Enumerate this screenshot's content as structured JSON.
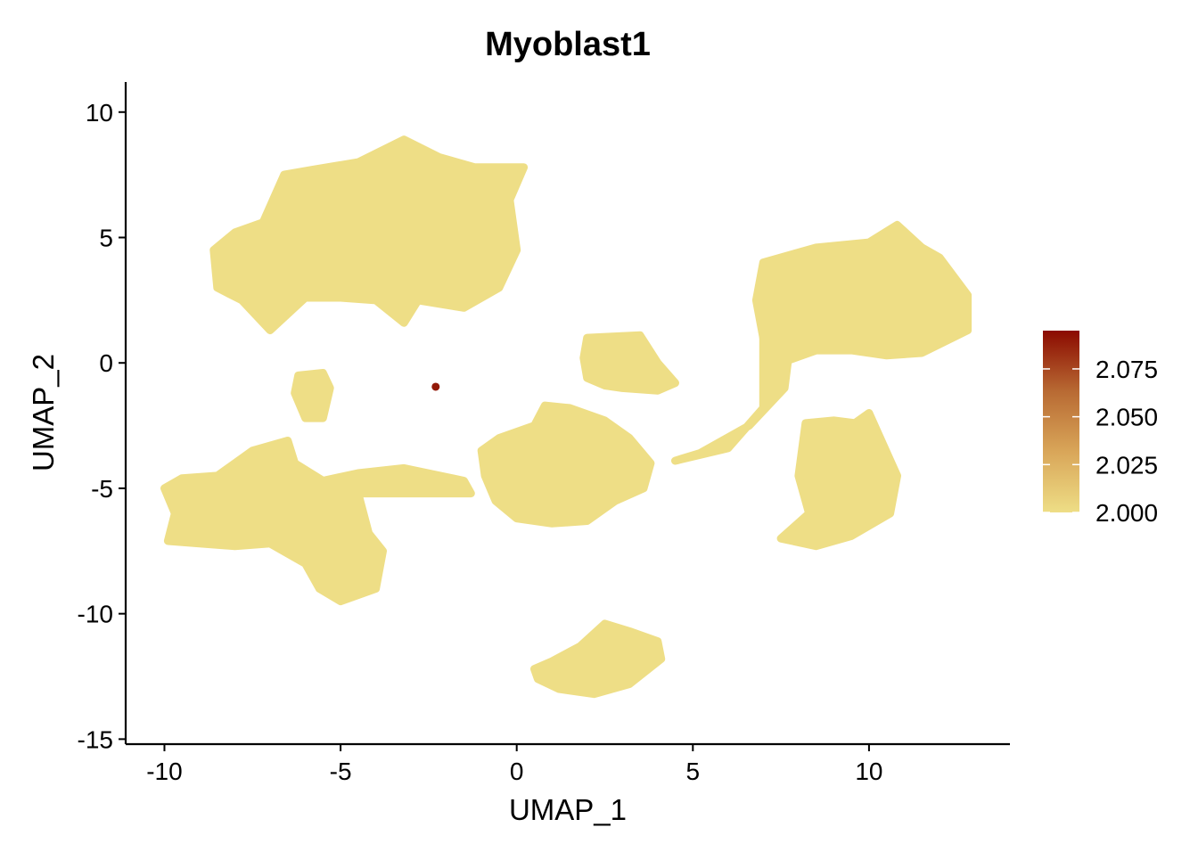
{
  "chart_data": {
    "type": "scatter",
    "title": "Myoblast1",
    "xlabel": "UMAP_1",
    "ylabel": "UMAP_2",
    "xlim": [
      -11.1,
      14.0
    ],
    "ylim": [
      -15.2,
      11.2
    ],
    "x_ticks": [
      {
        "value": -10,
        "label": "-10"
      },
      {
        "value": -5,
        "label": "-5"
      },
      {
        "value": 0,
        "label": "0"
      },
      {
        "value": 5,
        "label": "5"
      },
      {
        "value": 10,
        "label": "10"
      }
    ],
    "y_ticks": [
      {
        "value": 10,
        "label": "10"
      },
      {
        "value": 5,
        "label": "5"
      },
      {
        "value": 0,
        "label": "0"
      },
      {
        "value": -5,
        "label": "-5"
      },
      {
        "value": -10,
        "label": "-10"
      },
      {
        "value": -15,
        "label": "-15"
      }
    ],
    "grid": false,
    "point_color_low": "#EEDE86",
    "point_color_high": "#8B0A00",
    "clusters": [
      {
        "id": "top-left-cluster",
        "polygon": [
          [
            -8.5,
            3.0
          ],
          [
            -8.6,
            4.5
          ],
          [
            -8.0,
            5.2
          ],
          [
            -7.2,
            5.6
          ],
          [
            -6.6,
            7.5
          ],
          [
            -5.8,
            7.7
          ],
          [
            -4.5,
            8.0
          ],
          [
            -3.2,
            8.9
          ],
          [
            -2.2,
            8.2
          ],
          [
            -1.2,
            7.8
          ],
          [
            0.2,
            7.8
          ],
          [
            -0.2,
            6.5
          ],
          [
            0.0,
            4.5
          ],
          [
            -0.5,
            3.0
          ],
          [
            -1.5,
            2.2
          ],
          [
            -2.8,
            2.5
          ],
          [
            -3.2,
            1.6
          ],
          [
            -4.0,
            2.5
          ],
          [
            -5.0,
            2.6
          ],
          [
            -6.0,
            2.6
          ],
          [
            -7.0,
            1.3
          ],
          [
            -7.8,
            2.5
          ]
        ],
        "value": 2.0
      },
      {
        "id": "bridge-cluster",
        "polygon": [
          [
            -6.2,
            -0.5
          ],
          [
            -5.5,
            -0.4
          ],
          [
            -5.3,
            -1.0
          ],
          [
            -5.5,
            -2.2
          ],
          [
            -6.0,
            -2.2
          ],
          [
            -6.3,
            -1.2
          ]
        ],
        "value": 2.0
      },
      {
        "id": "bottom-left-cluster",
        "polygon": [
          [
            -10.0,
            -5.0
          ],
          [
            -9.5,
            -4.6
          ],
          [
            -8.5,
            -4.5
          ],
          [
            -7.5,
            -3.5
          ],
          [
            -6.5,
            -3.1
          ],
          [
            -6.3,
            -4.0
          ],
          [
            -5.5,
            -4.7
          ],
          [
            -4.5,
            -4.4
          ],
          [
            -3.2,
            -4.2
          ],
          [
            -1.5,
            -4.7
          ],
          [
            -1.3,
            -5.2
          ],
          [
            -3.5,
            -5.2
          ],
          [
            -4.5,
            -5.2
          ],
          [
            -4.2,
            -6.8
          ],
          [
            -3.8,
            -7.5
          ],
          [
            -4.0,
            -9.0
          ],
          [
            -5.0,
            -9.5
          ],
          [
            -5.6,
            -9.0
          ],
          [
            -6.0,
            -8.0
          ],
          [
            -7.0,
            -7.2
          ],
          [
            -8.0,
            -7.3
          ],
          [
            -9.0,
            -7.2
          ],
          [
            -9.9,
            -7.1
          ],
          [
            -9.7,
            -6.0
          ]
        ],
        "value": 2.0
      },
      {
        "id": "center-cluster",
        "polygon": [
          [
            -1.0,
            -3.5
          ],
          [
            -0.5,
            -3.0
          ],
          [
            0.5,
            -2.5
          ],
          [
            0.8,
            -1.7
          ],
          [
            1.5,
            -1.8
          ],
          [
            2.5,
            -2.3
          ],
          [
            3.2,
            -3.0
          ],
          [
            3.8,
            -4.0
          ],
          [
            3.6,
            -5.0
          ],
          [
            2.8,
            -5.5
          ],
          [
            2.0,
            -6.3
          ],
          [
            1.0,
            -6.4
          ],
          [
            0.0,
            -6.2
          ],
          [
            -0.6,
            -5.5
          ],
          [
            -0.9,
            -4.5
          ]
        ],
        "value": 2.0
      },
      {
        "id": "small-center-cluster",
        "polygon": [
          [
            2.0,
            1.0
          ],
          [
            3.5,
            1.1
          ],
          [
            4.0,
            0.0
          ],
          [
            4.5,
            -0.8
          ],
          [
            4.0,
            -1.1
          ],
          [
            3.0,
            -1.0
          ],
          [
            2.5,
            -0.9
          ],
          [
            2.0,
            -0.6
          ],
          [
            1.9,
            0.2
          ]
        ],
        "value": 2.0
      },
      {
        "id": "top-right-cluster",
        "polygon": [
          [
            7.0,
            4.0
          ],
          [
            8.5,
            4.6
          ],
          [
            10.0,
            4.8
          ],
          [
            10.8,
            5.5
          ],
          [
            11.5,
            4.6
          ],
          [
            12.0,
            4.2
          ],
          [
            12.8,
            2.7
          ],
          [
            12.8,
            1.3
          ],
          [
            11.5,
            0.4
          ],
          [
            10.5,
            0.3
          ],
          [
            9.5,
            0.5
          ],
          [
            8.5,
            0.5
          ],
          [
            7.5,
            0.0
          ],
          [
            7.0,
            1.0
          ],
          [
            6.8,
            2.5
          ]
        ],
        "value": 2.0
      },
      {
        "id": "bridge-right-cluster",
        "polygon": [
          [
            7.0,
            1.5
          ],
          [
            7.8,
            1.2
          ],
          [
            7.6,
            -1.0
          ],
          [
            6.6,
            -2.5
          ],
          [
            5.2,
            -3.6
          ],
          [
            4.5,
            -3.9
          ],
          [
            6.0,
            -3.4
          ],
          [
            7.0,
            -1.8
          ]
        ],
        "value": 2.0
      },
      {
        "id": "lower-right-cluster",
        "polygon": [
          [
            8.2,
            -2.4
          ],
          [
            9.0,
            -2.3
          ],
          [
            9.6,
            -2.4
          ],
          [
            10.0,
            -2.0
          ],
          [
            10.8,
            -4.5
          ],
          [
            10.6,
            -6.0
          ],
          [
            9.5,
            -6.9
          ],
          [
            8.5,
            -7.3
          ],
          [
            7.5,
            -7.0
          ],
          [
            8.3,
            -6.0
          ],
          [
            8.0,
            -4.5
          ]
        ],
        "value": 2.0
      },
      {
        "id": "bottom-cluster",
        "polygon": [
          [
            0.5,
            -12.2
          ],
          [
            1.0,
            -11.9
          ],
          [
            1.8,
            -11.3
          ],
          [
            2.5,
            -10.4
          ],
          [
            3.2,
            -10.7
          ],
          [
            4.0,
            -11.1
          ],
          [
            4.1,
            -11.8
          ],
          [
            3.2,
            -12.8
          ],
          [
            2.2,
            -13.2
          ],
          [
            1.2,
            -13.0
          ],
          [
            0.6,
            -12.6
          ]
        ],
        "value": 2.0
      }
    ],
    "highlight_points": [
      {
        "x": -2.3,
        "y": -0.95,
        "value": 2.09
      }
    ],
    "legend": {
      "type": "colorbar",
      "position": "right",
      "min": 2.0,
      "max": 2.095,
      "ticks": [
        {
          "value": 2.0,
          "label": "2.000"
        },
        {
          "value": 2.025,
          "label": "2.025"
        },
        {
          "value": 2.05,
          "label": "2.050"
        },
        {
          "value": 2.075,
          "label": "2.075"
        }
      ],
      "colors": [
        "#EEDE86",
        "#D9A659",
        "#B86A33",
        "#8B0A00"
      ]
    }
  }
}
